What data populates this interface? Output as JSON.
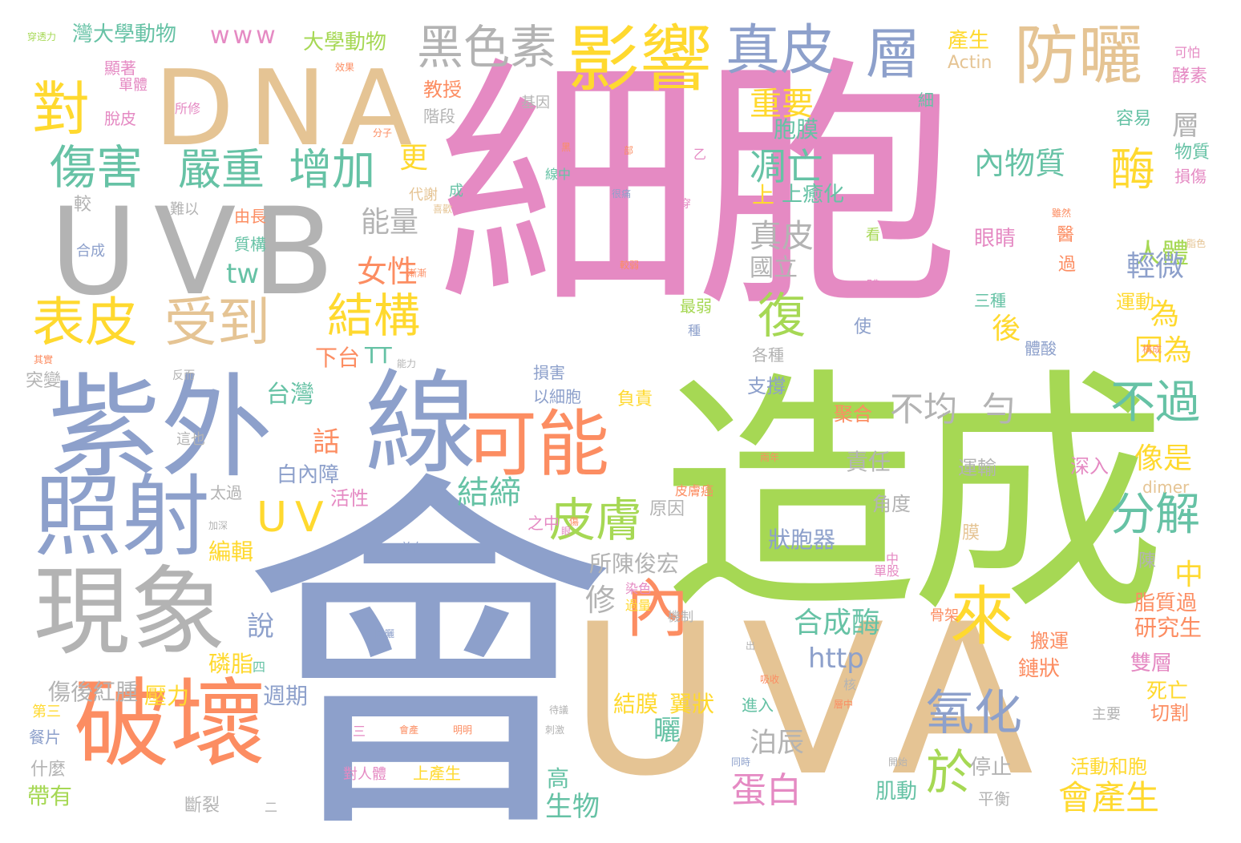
{
  "colors": {
    "pink": "#e58ac3",
    "green": "#a6d854",
    "blue": "#8da0cb",
    "tan": "#e5c494",
    "gray": "#b3b3b3",
    "orange": "#fc8d62",
    "yellow": "#ffd92f",
    "teal": "#66c2a5"
  },
  "words": [
    "細胞",
    "造成",
    "會",
    "UVA",
    "紫外",
    "線",
    "UVB",
    "DNA",
    "破壞",
    "現象",
    "照射",
    "可能",
    "影響",
    "防曬",
    "真皮",
    "層",
    "黑色素",
    "對",
    "傷害",
    "表皮",
    "受到",
    "嚴重",
    "增加",
    "結構",
    "皮膚",
    "內",
    "來",
    "氧化",
    "於",
    "分解",
    "不過",
    "酶",
    "復",
    "UV",
    "凋亡",
    "結締",
    "不均",
    "勻",
    "能量",
    "女性",
    "tw",
    "www",
    "大學動物",
    "灣大學動物",
    "產生",
    "Actin",
    "更",
    "上",
    "內物質",
    "人體",
    "重要",
    "胞膜",
    "真皮",
    "國立",
    "輕微",
    "為",
    "因為",
    "後",
    "像是",
    "中",
    "會產生",
    "合成酶",
    "http",
    "蛋白",
    "泊辰",
    "曬",
    "結膜",
    "翼狀",
    "修",
    "說",
    "所陳俊宏",
    "台灣",
    "話",
    "下台",
    "TT",
    "白內障",
    "活性",
    "編輯",
    "傷後紅腫",
    "壓力",
    "磷脂",
    "週期",
    "帶有",
    "什麼",
    "斷裂",
    "生物",
    "高",
    "平衡",
    "肌動",
    "停止",
    "活動和胞",
    "雙層",
    "死亡",
    "切割",
    "研究生",
    "脂質過",
    "鏈狀",
    "搬運",
    "深入",
    "運輸",
    "責任",
    "角度",
    "狀胞器",
    "原因",
    "膜",
    "陳",
    "dimer",
    "教授",
    "階段",
    "基因",
    "細",
    "容易",
    "層",
    "物質",
    "損傷",
    "酵素",
    "可怕",
    "眼睛",
    "醫",
    "過",
    "三種",
    "運動",
    "體酸",
    "使",
    "最弱",
    "種",
    "看",
    "體",
    "損害",
    "以細胞",
    "負責",
    "支撐",
    "各種",
    "聚合",
    "上產生",
    "對人體",
    "第三",
    "餐片",
    "突變",
    "較",
    "難以",
    "合成",
    "由長",
    "質構",
    "脫皮",
    "單體",
    "顯著",
    "所修",
    "代謝",
    "成",
    "線中",
    "喜歡",
    "乙",
    "穿",
    "四",
    "二",
    "核",
    "進入",
    "主要",
    "三",
    "這也",
    "太過",
    "反而",
    "能力",
    "其實",
    "美白",
    "防曬",
    "之中",
    "皮膚癌",
    "機制",
    "過量",
    "染色",
    "單股",
    "骨架",
    "傷",
    "出",
    "吸收",
    "層中",
    "同時",
    "開始",
    "待議",
    "刺激",
    "明明",
    "會產",
    "雖然",
    "構成",
    "脂色",
    "較弱",
    "兩年",
    "部",
    "黑",
    "分子",
    "很痛",
    "眼",
    "加深",
    "漸漸",
    "穿透力",
    "效果",
    "中",
    "上癒化"
  ]
}
